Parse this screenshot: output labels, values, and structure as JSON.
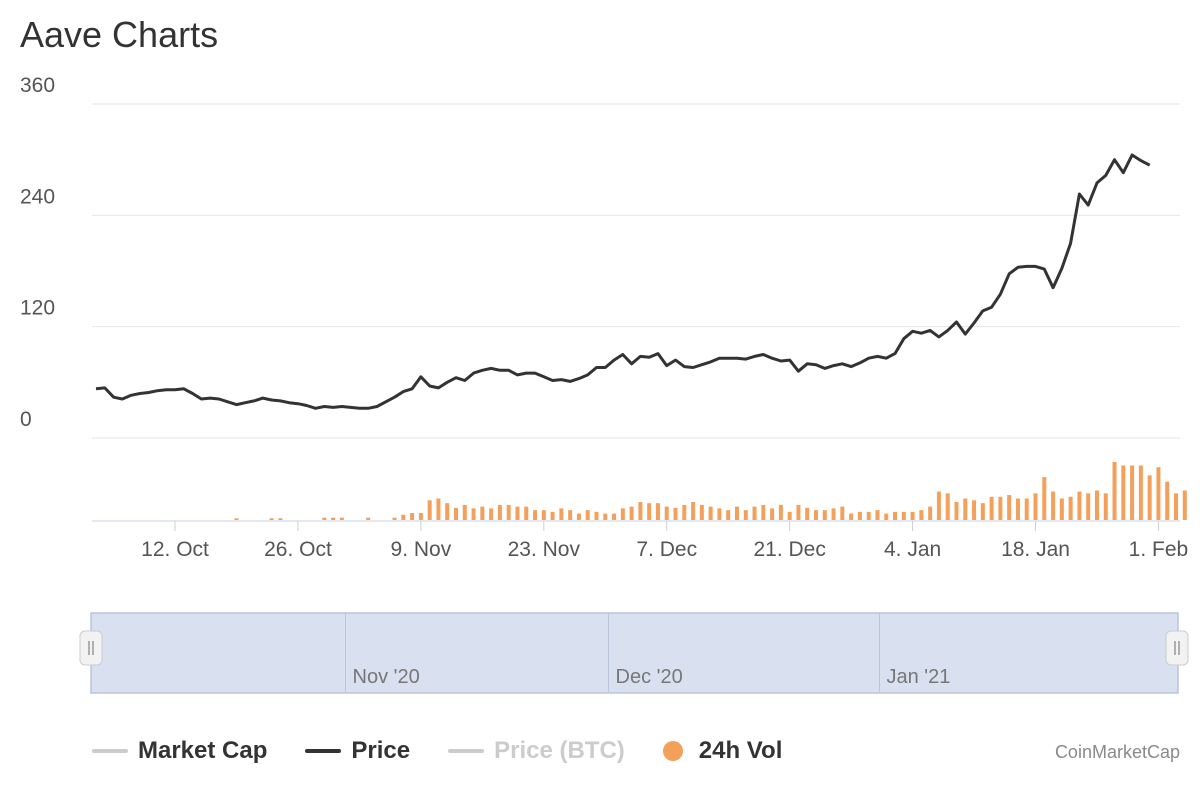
{
  "title": "Aave Charts",
  "credit": "CoinMarketCap",
  "colors": {
    "price": "#333333",
    "volume": "#f5a05a",
    "grid": "#e6e6e6",
    "navigator_fill": "#d9e0ef",
    "navigator_border": "#b9c5de",
    "legend_off": "#cccccc"
  },
  "legend": [
    {
      "label": "Market Cap",
      "marker": "line",
      "color": "#cccccc",
      "active": true
    },
    {
      "label": "Price",
      "marker": "line",
      "color": "#333333",
      "active": true
    },
    {
      "label": "Price (BTC)",
      "marker": "line",
      "color": "#cccccc",
      "active": false
    },
    {
      "label": "24h Vol",
      "marker": "dot",
      "color": "#f5a05a",
      "active": true
    }
  ],
  "chart_data": {
    "type": "line",
    "title": "Aave Charts",
    "xlabel": "",
    "ylabel": "",
    "x_range": [
      "2020-10-03",
      "2021-02-03"
    ],
    "ylim": [
      0,
      360
    ],
    "y_ticks": [
      0,
      120,
      240,
      360
    ],
    "grid": true,
    "legend_position": "bottom",
    "x_ticks": [
      {
        "date": "2020-10-12",
        "label": "12. Oct"
      },
      {
        "date": "2020-10-26",
        "label": "26. Oct"
      },
      {
        "date": "2020-11-09",
        "label": "9. Nov"
      },
      {
        "date": "2020-11-23",
        "label": "23. Nov"
      },
      {
        "date": "2020-12-07",
        "label": "7. Dec"
      },
      {
        "date": "2020-12-21",
        "label": "21. Dec"
      },
      {
        "date": "2021-01-04",
        "label": "4. Jan"
      },
      {
        "date": "2021-01-18",
        "label": "18. Jan"
      },
      {
        "date": "2021-02-01",
        "label": "1. Feb"
      }
    ],
    "navigator_labels": [
      {
        "date": "2020-11-01",
        "label": "Nov '20"
      },
      {
        "date": "2020-12-01",
        "label": "Dec '20"
      },
      {
        "date": "2021-01-01",
        "label": "Jan '21"
      }
    ],
    "series": [
      {
        "name": "Price",
        "points": [
          [
            "2020-10-03",
            53
          ],
          [
            "2020-10-04",
            54
          ],
          [
            "2020-10-05",
            44
          ],
          [
            "2020-10-06",
            42
          ],
          [
            "2020-10-07",
            46
          ],
          [
            "2020-10-08",
            48
          ],
          [
            "2020-10-09",
            49
          ],
          [
            "2020-10-10",
            51
          ],
          [
            "2020-10-11",
            52
          ],
          [
            "2020-10-12",
            52
          ],
          [
            "2020-10-13",
            53
          ],
          [
            "2020-10-14",
            48
          ],
          [
            "2020-10-15",
            42
          ],
          [
            "2020-10-16",
            43
          ],
          [
            "2020-10-17",
            42
          ],
          [
            "2020-10-18",
            39
          ],
          [
            "2020-10-19",
            36
          ],
          [
            "2020-10-20",
            38
          ],
          [
            "2020-10-21",
            40
          ],
          [
            "2020-10-22",
            43
          ],
          [
            "2020-10-23",
            41
          ],
          [
            "2020-10-24",
            40
          ],
          [
            "2020-10-25",
            38
          ],
          [
            "2020-10-26",
            37
          ],
          [
            "2020-10-27",
            35
          ],
          [
            "2020-10-28",
            32
          ],
          [
            "2020-10-29",
            34
          ],
          [
            "2020-10-30",
            33
          ],
          [
            "2020-10-31",
            34
          ],
          [
            "2020-11-01",
            33
          ],
          [
            "2020-11-02",
            32
          ],
          [
            "2020-11-03",
            32
          ],
          [
            "2020-11-04",
            34
          ],
          [
            "2020-11-05",
            39
          ],
          [
            "2020-11-06",
            44
          ],
          [
            "2020-11-07",
            50
          ],
          [
            "2020-11-08",
            53
          ],
          [
            "2020-11-09",
            66
          ],
          [
            "2020-11-10",
            56
          ],
          [
            "2020-11-11",
            54
          ],
          [
            "2020-11-12",
            60
          ],
          [
            "2020-11-13",
            65
          ],
          [
            "2020-11-14",
            62
          ],
          [
            "2020-11-15",
            70
          ],
          [
            "2020-11-16",
            73
          ],
          [
            "2020-11-17",
            75
          ],
          [
            "2020-11-18",
            73
          ],
          [
            "2020-11-19",
            73
          ],
          [
            "2020-11-20",
            68
          ],
          [
            "2020-11-21",
            70
          ],
          [
            "2020-11-22",
            70
          ],
          [
            "2020-11-23",
            66
          ],
          [
            "2020-11-24",
            62
          ],
          [
            "2020-11-25",
            63
          ],
          [
            "2020-11-26",
            61
          ],
          [
            "2020-11-27",
            64
          ],
          [
            "2020-11-28",
            68
          ],
          [
            "2020-11-29",
            76
          ],
          [
            "2020-11-30",
            76
          ],
          [
            "2020-12-01",
            84
          ],
          [
            "2020-12-02",
            90
          ],
          [
            "2020-12-03",
            80
          ],
          [
            "2020-12-04",
            88
          ],
          [
            "2020-12-05",
            87
          ],
          [
            "2020-12-06",
            91
          ],
          [
            "2020-12-07",
            78
          ],
          [
            "2020-12-08",
            84
          ],
          [
            "2020-12-09",
            77
          ],
          [
            "2020-12-10",
            76
          ],
          [
            "2020-12-11",
            79
          ],
          [
            "2020-12-12",
            82
          ],
          [
            "2020-12-13",
            86
          ],
          [
            "2020-12-14",
            86
          ],
          [
            "2020-12-15",
            86
          ],
          [
            "2020-12-16",
            85
          ],
          [
            "2020-12-17",
            88
          ],
          [
            "2020-12-18",
            90
          ],
          [
            "2020-12-19",
            86
          ],
          [
            "2020-12-20",
            83
          ],
          [
            "2020-12-21",
            84
          ],
          [
            "2020-12-22",
            72
          ],
          [
            "2020-12-23",
            80
          ],
          [
            "2020-12-24",
            79
          ],
          [
            "2020-12-25",
            75
          ],
          [
            "2020-12-26",
            78
          ],
          [
            "2020-12-27",
            80
          ],
          [
            "2020-12-28",
            77
          ],
          [
            "2020-12-29",
            81
          ],
          [
            "2020-12-30",
            86
          ],
          [
            "2020-12-31",
            88
          ],
          [
            "2021-01-01",
            86
          ],
          [
            "2021-01-02",
            91
          ],
          [
            "2021-01-03",
            107
          ],
          [
            "2021-01-04",
            115
          ],
          [
            "2021-01-05",
            113
          ],
          [
            "2021-01-06",
            116
          ],
          [
            "2021-01-07",
            109
          ],
          [
            "2021-01-08",
            116
          ],
          [
            "2021-01-09",
            125
          ],
          [
            "2021-01-10",
            112
          ],
          [
            "2021-01-11",
            124
          ],
          [
            "2021-01-12",
            137
          ],
          [
            "2021-01-13",
            141
          ],
          [
            "2021-01-14",
            155
          ],
          [
            "2021-01-15",
            177
          ],
          [
            "2021-01-16",
            184
          ],
          [
            "2021-01-17",
            185
          ],
          [
            "2021-01-18",
            185
          ],
          [
            "2021-01-19",
            182
          ],
          [
            "2021-01-20",
            162
          ],
          [
            "2021-01-21",
            183
          ],
          [
            "2021-01-22",
            210
          ],
          [
            "2021-01-23",
            263
          ],
          [
            "2021-01-24",
            251
          ],
          [
            "2021-01-25",
            275
          ],
          [
            "2021-01-26",
            283
          ],
          [
            "2021-01-27",
            300
          ],
          [
            "2021-01-28",
            286
          ],
          [
            "2021-01-29",
            305
          ],
          [
            "2021-01-30",
            299
          ],
          [
            "2021-01-31",
            294
          ]
        ]
      },
      {
        "name": "24h Vol",
        "axis": "secondary",
        "points": [
          [
            "2020-10-19",
            0.03
          ],
          [
            "2020-10-23",
            0.03
          ],
          [
            "2020-10-24",
            0.03
          ],
          [
            "2020-10-29",
            0.04
          ],
          [
            "2020-10-30",
            0.04
          ],
          [
            "2020-10-31",
            0.04
          ],
          [
            "2020-11-03",
            0.04
          ],
          [
            "2020-11-06",
            0.04
          ],
          [
            "2020-11-07",
            0.09
          ],
          [
            "2020-11-08",
            0.12
          ],
          [
            "2020-11-09",
            0.12
          ],
          [
            "2020-11-10",
            0.34
          ],
          [
            "2020-11-11",
            0.37
          ],
          [
            "2020-11-12",
            0.29
          ],
          [
            "2020-11-13",
            0.21
          ],
          [
            "2020-11-14",
            0.26
          ],
          [
            "2020-11-15",
            0.2
          ],
          [
            "2020-11-16",
            0.23
          ],
          [
            "2020-11-17",
            0.2
          ],
          [
            "2020-11-18",
            0.26
          ],
          [
            "2020-11-19",
            0.26
          ],
          [
            "2020-11-20",
            0.23
          ],
          [
            "2020-11-21",
            0.23
          ],
          [
            "2020-11-22",
            0.17
          ],
          [
            "2020-11-23",
            0.17
          ],
          [
            "2020-11-24",
            0.14
          ],
          [
            "2020-11-25",
            0.2
          ],
          [
            "2020-11-26",
            0.17
          ],
          [
            "2020-11-27",
            0.11
          ],
          [
            "2020-11-28",
            0.17
          ],
          [
            "2020-11-29",
            0.14
          ],
          [
            "2020-11-30",
            0.11
          ],
          [
            "2020-12-01",
            0.11
          ],
          [
            "2020-12-02",
            0.2
          ],
          [
            "2020-12-03",
            0.23
          ],
          [
            "2020-12-04",
            0.31
          ],
          [
            "2020-12-05",
            0.29
          ],
          [
            "2020-12-06",
            0.29
          ],
          [
            "2020-12-07",
            0.23
          ],
          [
            "2020-12-08",
            0.21
          ],
          [
            "2020-12-09",
            0.26
          ],
          [
            "2020-12-10",
            0.31
          ],
          [
            "2020-12-11",
            0.26
          ],
          [
            "2020-12-12",
            0.23
          ],
          [
            "2020-12-13",
            0.2
          ],
          [
            "2020-12-14",
            0.17
          ],
          [
            "2020-12-15",
            0.23
          ],
          [
            "2020-12-16",
            0.17
          ],
          [
            "2020-12-17",
            0.23
          ],
          [
            "2020-12-18",
            0.26
          ],
          [
            "2020-12-19",
            0.2
          ],
          [
            "2020-12-20",
            0.26
          ],
          [
            "2020-12-21",
            0.14
          ],
          [
            "2020-12-22",
            0.26
          ],
          [
            "2020-12-23",
            0.21
          ],
          [
            "2020-12-24",
            0.17
          ],
          [
            "2020-12-25",
            0.17
          ],
          [
            "2020-12-26",
            0.2
          ],
          [
            "2020-12-27",
            0.23
          ],
          [
            "2020-12-28",
            0.11
          ],
          [
            "2020-12-29",
            0.14
          ],
          [
            "2020-12-30",
            0.14
          ],
          [
            "2020-12-31",
            0.17
          ],
          [
            "2021-01-01",
            0.11
          ],
          [
            "2021-01-02",
            0.14
          ],
          [
            "2021-01-03",
            0.14
          ],
          [
            "2021-01-04",
            0.14
          ],
          [
            "2021-01-05",
            0.17
          ],
          [
            "2021-01-06",
            0.23
          ],
          [
            "2021-01-07",
            0.49
          ],
          [
            "2021-01-08",
            0.46
          ],
          [
            "2021-01-09",
            0.31
          ],
          [
            "2021-01-10",
            0.37
          ],
          [
            "2021-01-11",
            0.34
          ],
          [
            "2021-01-12",
            0.29
          ],
          [
            "2021-01-13",
            0.4
          ],
          [
            "2021-01-14",
            0.4
          ],
          [
            "2021-01-15",
            0.43
          ],
          [
            "2021-01-16",
            0.37
          ],
          [
            "2021-01-17",
            0.37
          ],
          [
            "2021-01-18",
            0.46
          ],
          [
            "2021-01-19",
            0.74
          ],
          [
            "2021-01-20",
            0.49
          ],
          [
            "2021-01-21",
            0.37
          ],
          [
            "2021-01-22",
            0.4
          ],
          [
            "2021-01-23",
            0.49
          ],
          [
            "2021-01-24",
            0.46
          ],
          [
            "2021-01-25",
            0.51
          ],
          [
            "2021-01-26",
            0.46
          ],
          [
            "2021-01-27",
            1.0
          ],
          [
            "2021-01-28",
            0.94
          ],
          [
            "2021-01-29",
            0.94
          ],
          [
            "2021-01-30",
            0.94
          ],
          [
            "2021-01-31",
            0.77
          ],
          [
            "2021-02-01",
            0.91
          ],
          [
            "2021-02-02",
            0.66
          ],
          [
            "2021-02-03",
            0.46
          ],
          [
            "2021-02-04",
            0.51
          ]
        ]
      }
    ]
  }
}
